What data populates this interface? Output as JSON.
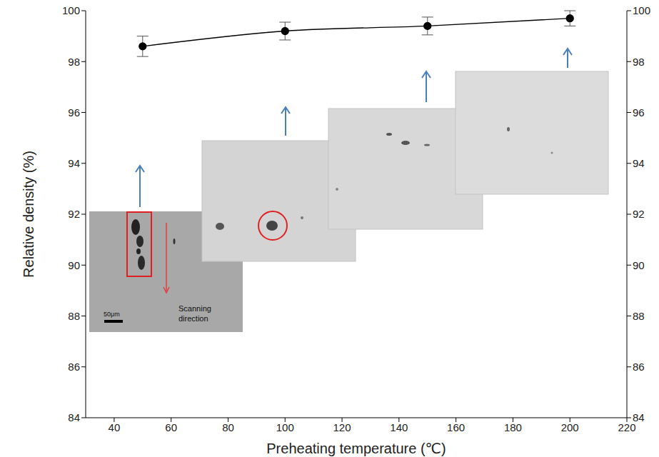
{
  "chart_data": {
    "type": "line",
    "x": [
      50,
      100,
      150,
      200
    ],
    "values": [
      98.6,
      99.2,
      99.4,
      99.7
    ],
    "errors": [
      0.4,
      0.35,
      0.35,
      0.3
    ],
    "color": "#000000",
    "marker": "circle",
    "xlabel": "Preheating temperature (℃)",
    "ylabel": "Relative density (%)",
    "xlim": [
      30,
      220
    ],
    "xticks": [
      40,
      60,
      80,
      100,
      120,
      140,
      160,
      180,
      200,
      220
    ],
    "ylim": [
      84,
      100
    ],
    "yticks": [
      84,
      86,
      88,
      90,
      92,
      94,
      96,
      98,
      100
    ],
    "y2lim": [
      84,
      100
    ],
    "y2ticks": [
      84,
      86,
      88,
      90,
      92,
      94,
      96,
      98,
      100
    ],
    "annotations": [
      "50μm",
      "Scanning direction"
    ],
    "grid": false
  }
}
